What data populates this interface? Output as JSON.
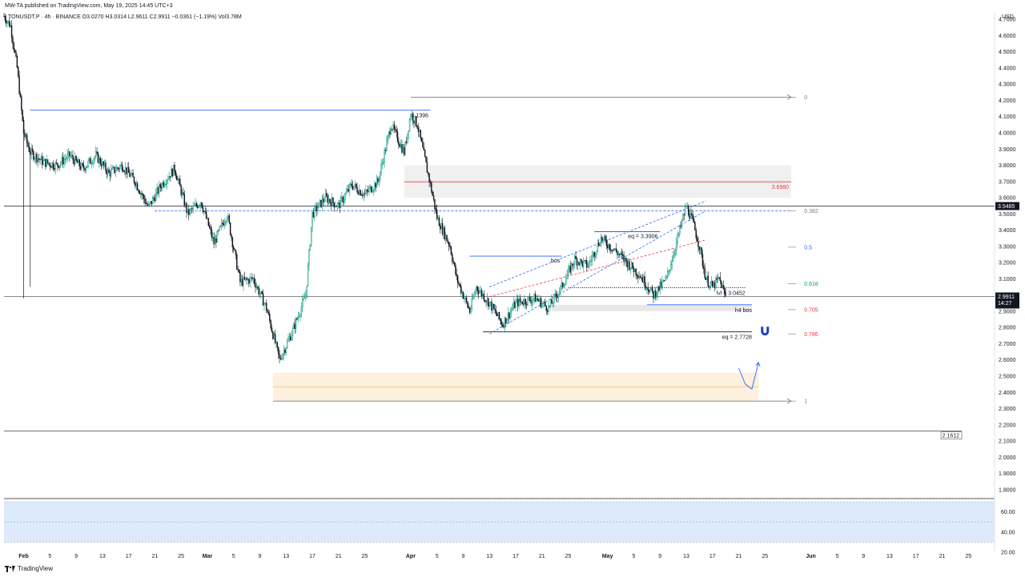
{
  "header": {
    "published": "MW-TA published on TradingView.com, May 19, 2025 14:45 UTC+3",
    "symbol_line": "TONUSDT.P · 4h · BINANCE   O3.0270  H3.0314  L2.9611  C2.9911  −0.0361 (−1.19%)  Vol3.78M"
  },
  "footer": {
    "brand": "TradingView",
    "logo_icon": "tradingview-logo-icon"
  },
  "axis": {
    "currency": "USD"
  },
  "chart_data": {
    "type": "candlestick",
    "title": "",
    "symbol": "TONUSDT.P",
    "timeframe": "4h",
    "exchange": "BINANCE",
    "ohlc": {
      "open": 3.027,
      "high": 3.0314,
      "low": 2.9611,
      "close": 2.9911,
      "change": -0.0361,
      "change_pct": -1.19,
      "volume": "3.78M"
    },
    "ylim": [
      1.75,
      4.75
    ],
    "y_ticks": [
      "4.7000",
      "4.6000",
      "4.5000",
      "4.4000",
      "4.3000",
      "4.2000",
      "4.1000",
      "4.0000",
      "3.9000",
      "3.8000",
      "3.7000",
      "3.6000",
      "3.5000",
      "3.4000",
      "3.3000",
      "3.2000",
      "3.1000",
      "3.0000",
      "2.9000",
      "2.8000",
      "2.7000",
      "2.6000",
      "2.5000",
      "2.4000",
      "2.3000",
      "2.2000",
      "2.1000",
      "2.0000",
      "1.9000",
      "1.8000"
    ],
    "x_range": [
      "2025-01-29",
      "2025-06-29"
    ],
    "x_ticks": [
      {
        "date": "2025-02-01",
        "label": "Feb",
        "bold": true
      },
      {
        "date": "2025-02-05",
        "label": "5"
      },
      {
        "date": "2025-02-09",
        "label": "9"
      },
      {
        "date": "2025-02-13",
        "label": "13"
      },
      {
        "date": "2025-02-17",
        "label": "17"
      },
      {
        "date": "2025-02-21",
        "label": "21"
      },
      {
        "date": "2025-02-25",
        "label": "25"
      },
      {
        "date": "2025-03-01",
        "label": "Mar",
        "bold": true
      },
      {
        "date": "2025-03-05",
        "label": "5"
      },
      {
        "date": "2025-03-09",
        "label": "9"
      },
      {
        "date": "2025-03-13",
        "label": "13"
      },
      {
        "date": "2025-03-17",
        "label": "17"
      },
      {
        "date": "2025-03-21",
        "label": "21"
      },
      {
        "date": "2025-03-25",
        "label": "25"
      },
      {
        "date": "2025-04-01",
        "label": "Apr",
        "bold": true
      },
      {
        "date": "2025-04-05",
        "label": "5"
      },
      {
        "date": "2025-04-09",
        "label": "9"
      },
      {
        "date": "2025-04-13",
        "label": "13"
      },
      {
        "date": "2025-04-17",
        "label": "17"
      },
      {
        "date": "2025-04-21",
        "label": "21"
      },
      {
        "date": "2025-04-25",
        "label": "25"
      },
      {
        "date": "2025-05-01",
        "label": "May",
        "bold": true
      },
      {
        "date": "2025-05-05",
        "label": "5"
      },
      {
        "date": "2025-05-09",
        "label": "9"
      },
      {
        "date": "2025-05-13",
        "label": "13"
      },
      {
        "date": "2025-05-17",
        "label": "17"
      },
      {
        "date": "2025-05-21",
        "label": "21"
      },
      {
        "date": "2025-05-25",
        "label": "25"
      },
      {
        "date": "2025-06-01",
        "label": "Jun",
        "bold": true
      },
      {
        "date": "2025-06-05",
        "label": "5"
      },
      {
        "date": "2025-06-09",
        "label": "9"
      },
      {
        "date": "2025-06-13",
        "label": "13"
      },
      {
        "date": "2025-06-17",
        "label": "17"
      },
      {
        "date": "2025-06-21",
        "label": "21"
      },
      {
        "date": "2025-06-25",
        "label": "25"
      }
    ],
    "price_path": [
      [
        "2025-01-29",
        4.72
      ],
      [
        "2025-01-30",
        4.66
      ],
      [
        "2025-01-31",
        4.4
      ],
      [
        "2025-02-01",
        4.0
      ],
      [
        "2025-02-02",
        3.88
      ],
      [
        "2025-02-04",
        3.82
      ],
      [
        "2025-02-06",
        3.8
      ],
      [
        "2025-02-08",
        3.86
      ],
      [
        "2025-02-10",
        3.78
      ],
      [
        "2025-02-12",
        3.86
      ],
      [
        "2025-02-14",
        3.75
      ],
      [
        "2025-02-16",
        3.8
      ],
      [
        "2025-02-18",
        3.7
      ],
      [
        "2025-02-20",
        3.54
      ],
      [
        "2025-02-22",
        3.68
      ],
      [
        "2025-02-24",
        3.78
      ],
      [
        "2025-02-26",
        3.5
      ],
      [
        "2025-02-28",
        3.58
      ],
      [
        "2025-03-02",
        3.32
      ],
      [
        "2025-03-04",
        3.5
      ],
      [
        "2025-03-06",
        3.08
      ],
      [
        "2025-03-08",
        3.1
      ],
      [
        "2025-03-10",
        2.92
      ],
      [
        "2025-03-12",
        2.6
      ],
      [
        "2025-03-14",
        2.78
      ],
      [
        "2025-03-16",
        3.0
      ],
      [
        "2025-03-17",
        3.5
      ],
      [
        "2025-03-19",
        3.6
      ],
      [
        "2025-03-21",
        3.55
      ],
      [
        "2025-03-23",
        3.68
      ],
      [
        "2025-03-25",
        3.62
      ],
      [
        "2025-03-27",
        3.7
      ],
      [
        "2025-03-29",
        4.05
      ],
      [
        "2025-03-31",
        3.88
      ],
      [
        "2025-04-01",
        4.12
      ],
      [
        "2025-04-02",
        4.05
      ],
      [
        "2025-04-04",
        3.68
      ],
      [
        "2025-04-05",
        3.48
      ],
      [
        "2025-04-07",
        3.3
      ],
      [
        "2025-04-08",
        3.1
      ],
      [
        "2025-04-10",
        2.9
      ],
      [
        "2025-04-11",
        3.05
      ],
      [
        "2025-04-13",
        2.95
      ],
      [
        "2025-04-15",
        2.82
      ],
      [
        "2025-04-17",
        2.95
      ],
      [
        "2025-04-20",
        2.98
      ],
      [
        "2025-04-22",
        2.92
      ],
      [
        "2025-04-24",
        3.05
      ],
      [
        "2025-04-26",
        3.22
      ],
      [
        "2025-04-28",
        3.18
      ],
      [
        "2025-04-30",
        3.35
      ],
      [
        "2025-05-02",
        3.28
      ],
      [
        "2025-05-04",
        3.2
      ],
      [
        "2025-05-06",
        3.12
      ],
      [
        "2025-05-08",
        3.0
      ],
      [
        "2025-05-10",
        3.1
      ],
      [
        "2025-05-12",
        3.4
      ],
      [
        "2025-05-13",
        3.55
      ],
      [
        "2025-05-14",
        3.45
      ],
      [
        "2025-05-15",
        3.3
      ],
      [
        "2025-05-16",
        3.1
      ],
      [
        "2025-05-17",
        3.05
      ],
      [
        "2025-05-18",
        3.1
      ],
      [
        "2025-05-19",
        2.99
      ]
    ],
    "current_price": {
      "value": 2.9911,
      "label": "2.9911",
      "countdown": "14:27"
    },
    "price_badges": [
      {
        "value": 3.5485,
        "label": "3.5485"
      }
    ],
    "horizontal_lines": [
      {
        "value": 3.5485,
        "color": "#555555",
        "style": "solid",
        "from": "2025-01-29",
        "to": "2025-06-29"
      },
      {
        "value": 2.9911,
        "color": "#777777",
        "style": "solid",
        "from": "2025-01-29",
        "to": "2025-06-29"
      },
      {
        "value": 2.1612,
        "color": "#555555",
        "style": "solid",
        "from": "2025-01-29",
        "to": "2025-06-24",
        "label": "2.1612"
      },
      {
        "value": 4.1396,
        "color": "#2962ff",
        "style": "solid",
        "from": "2025-02-02",
        "to": "2025-04-04",
        "label": "4.1396"
      },
      {
        "value": 4.22,
        "color": "#787b86",
        "style": "solid",
        "from": "2025-04-01",
        "to": "2025-05-29",
        "arrow": true
      },
      {
        "value": 2.346,
        "color": "#787b86",
        "style": "solid",
        "from": "2025-03-11",
        "to": "2025-05-29",
        "arrow": true
      },
      {
        "value": 3.698,
        "color": "#f23645",
        "style": "solid",
        "from": "2025-03-31",
        "to": "2025-05-29"
      },
      {
        "value": 3.52,
        "color": "#2962ff",
        "style": "dashed",
        "from": "2025-02-21",
        "to": "2025-05-29"
      },
      {
        "value": 3.3906,
        "color": "#2962ff",
        "style": "solid",
        "from": "2025-04-29",
        "to": "2025-05-09",
        "label": "eq = 3.3906"
      },
      {
        "value": 3.24,
        "color": "#2962ff",
        "style": "solid",
        "from": "2025-04-10",
        "to": "2025-04-24",
        "label": "bos"
      },
      {
        "value": 3.0452,
        "color": "#131722",
        "style": "dotted",
        "from": "2025-04-25",
        "to": "2025-05-22",
        "label": "lvl = 3.0452"
      },
      {
        "value": 2.94,
        "color": "#2962ff",
        "style": "solid",
        "from": "2025-05-07",
        "to": "2025-05-23",
        "label": "h4 bos"
      },
      {
        "value": 2.7728,
        "color": "#131722",
        "style": "solid",
        "from": "2025-04-12",
        "to": "2025-05-23",
        "label": "eq = 2.7728"
      }
    ],
    "zones": [
      {
        "y1": 3.6,
        "y2": 3.8,
        "from": "2025-03-31",
        "to": "2025-05-29",
        "color": "#f0f0f0"
      },
      {
        "y1": 2.346,
        "y2": 2.52,
        "from": "2025-03-11",
        "to": "2025-05-24",
        "color": "#fdf0dc"
      },
      {
        "y1": 2.9,
        "y2": 2.94,
        "from": "2025-04-22",
        "to": "2025-05-23",
        "color": "#e8e8e8"
      }
    ],
    "trend_lines": [
      {
        "from": [
          "2025-04-13",
          2.76
        ],
        "to": [
          "2025-05-16",
          3.52
        ],
        "color": "#2962ff",
        "style": "dashed"
      },
      {
        "from": [
          "2025-04-13",
          2.99
        ],
        "to": [
          "2025-05-16",
          3.34
        ],
        "color": "#f23645",
        "style": "dashed"
      },
      {
        "from": [
          "2025-04-13",
          3.05
        ],
        "to": [
          "2025-05-16",
          3.58
        ],
        "color": "#2962ff",
        "style": "dashed"
      }
    ],
    "fib_levels": [
      {
        "ratio": "0",
        "value": 4.22,
        "color": "#787b86"
      },
      {
        "ratio": "0.382",
        "value": 3.52,
        "color": "#787b86"
      },
      {
        "ratio": "0.5",
        "value": 3.295,
        "color": "#2962ff"
      },
      {
        "ratio": "0.618",
        "value": 3.07,
        "color": "#089981"
      },
      {
        "ratio": "0.705",
        "value": 2.91,
        "color": "#f23645"
      },
      {
        "ratio": "0.786",
        "value": 2.76,
        "color": "#f23645"
      },
      {
        "ratio": "1",
        "value": 2.346,
        "color": "#787b86"
      }
    ],
    "labels": [
      {
        "text": "3.6980",
        "value": 3.698,
        "date": "2025-05-29",
        "color": "#f23645"
      }
    ],
    "projection_arrow": [
      [
        "2025-05-21",
        2.55
      ],
      [
        "2025-05-22",
        2.45
      ],
      [
        "2025-05-23",
        2.42
      ],
      [
        "2025-05-24",
        2.58
      ]
    ],
    "magnet_icon": "magnet-icon",
    "oscillator": {
      "ylim": [
        20,
        70
      ],
      "ticks": [
        "60.00",
        "40.00",
        "20.00"
      ],
      "band": [
        30,
        70
      ],
      "color": "#ddeafc"
    }
  }
}
